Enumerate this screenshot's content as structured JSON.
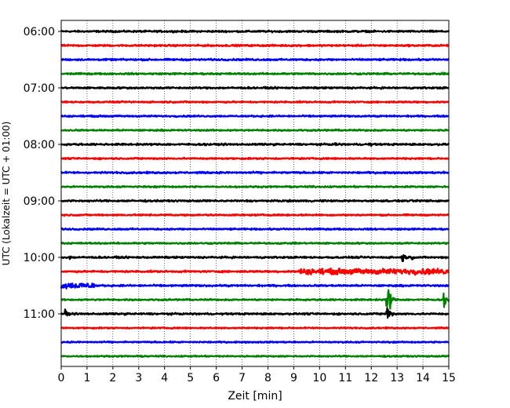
{
  "chart_data": {
    "type": "line",
    "title": "",
    "xlabel": "Zeit  [min]",
    "ylabel": "UTC (Lokalzeit = UTC + 01:00)",
    "xlim": [
      0,
      15
    ],
    "x_ticks": [
      0,
      1,
      2,
      3,
      4,
      5,
      6,
      7,
      8,
      9,
      10,
      11,
      12,
      13,
      14,
      15
    ],
    "y_tick_labels": [
      "06:00",
      "07:00",
      "08:00",
      "09:00",
      "10:00",
      "11:00"
    ],
    "y_tick_trace_index": [
      0,
      4,
      8,
      12,
      16,
      20
    ],
    "grid": "vertical dotted at each minute",
    "trace_interval_min": 15,
    "trace_colors": [
      "#000000",
      "#ff0000",
      "#0000ff",
      "#008000"
    ],
    "traces": [
      {
        "start": "06:00",
        "amplitude": 0.09
      },
      {
        "start": "06:15",
        "amplitude": 0.09
      },
      {
        "start": "06:30",
        "amplitude": 0.09
      },
      {
        "start": "06:45",
        "amplitude": 0.09
      },
      {
        "start": "07:00",
        "amplitude": 0.09
      },
      {
        "start": "07:15",
        "amplitude": 0.08
      },
      {
        "start": "07:30",
        "amplitude": 0.08
      },
      {
        "start": "07:45",
        "amplitude": 0.08
      },
      {
        "start": "08:00",
        "amplitude": 0.09,
        "events": [
          {
            "t": 10.6,
            "a": 0.3
          },
          {
            "t": 11.9,
            "a": 0.3
          }
        ]
      },
      {
        "start": "08:15",
        "amplitude": 0.08
      },
      {
        "start": "08:30",
        "amplitude": 0.09
      },
      {
        "start": "08:45",
        "amplitude": 0.08
      },
      {
        "start": "09:00",
        "amplitude": 0.09,
        "events": [
          {
            "t": 14.3,
            "a": 0.25
          }
        ]
      },
      {
        "start": "09:15",
        "amplitude": 0.08
      },
      {
        "start": "09:30",
        "amplitude": 0.08
      },
      {
        "start": "09:45",
        "amplitude": 0.08
      },
      {
        "start": "10:00",
        "amplitude": 0.09,
        "events": [
          {
            "t": 0.3,
            "a": 0.3
          },
          {
            "t": 13.2,
            "a": 0.6
          },
          {
            "t": 13.5,
            "a": 0.4
          }
        ]
      },
      {
        "start": "10:15",
        "amplitude": 0.09,
        "band": {
          "from": 9.2,
          "to": 15,
          "a": 0.28
        }
      },
      {
        "start": "10:30",
        "amplitude": 0.09,
        "band": {
          "from": 0,
          "to": 1.3,
          "a": 0.3
        }
      },
      {
        "start": "10:45",
        "amplitude": 0.08,
        "events": [
          {
            "t": 12.6,
            "a": 2.4
          },
          {
            "t": 12.75,
            "a": 0.7
          },
          {
            "t": 14.8,
            "a": 0.7
          }
        ]
      },
      {
        "start": "11:00",
        "amplitude": 0.09,
        "events": [
          {
            "t": 0.15,
            "a": 0.5
          },
          {
            "t": 12.6,
            "a": 1.2
          }
        ]
      },
      {
        "start": "11:15",
        "amplitude": 0.07
      },
      {
        "start": "11:30",
        "amplitude": 0.07
      },
      {
        "start": "11:45",
        "amplitude": 0.07
      }
    ]
  }
}
